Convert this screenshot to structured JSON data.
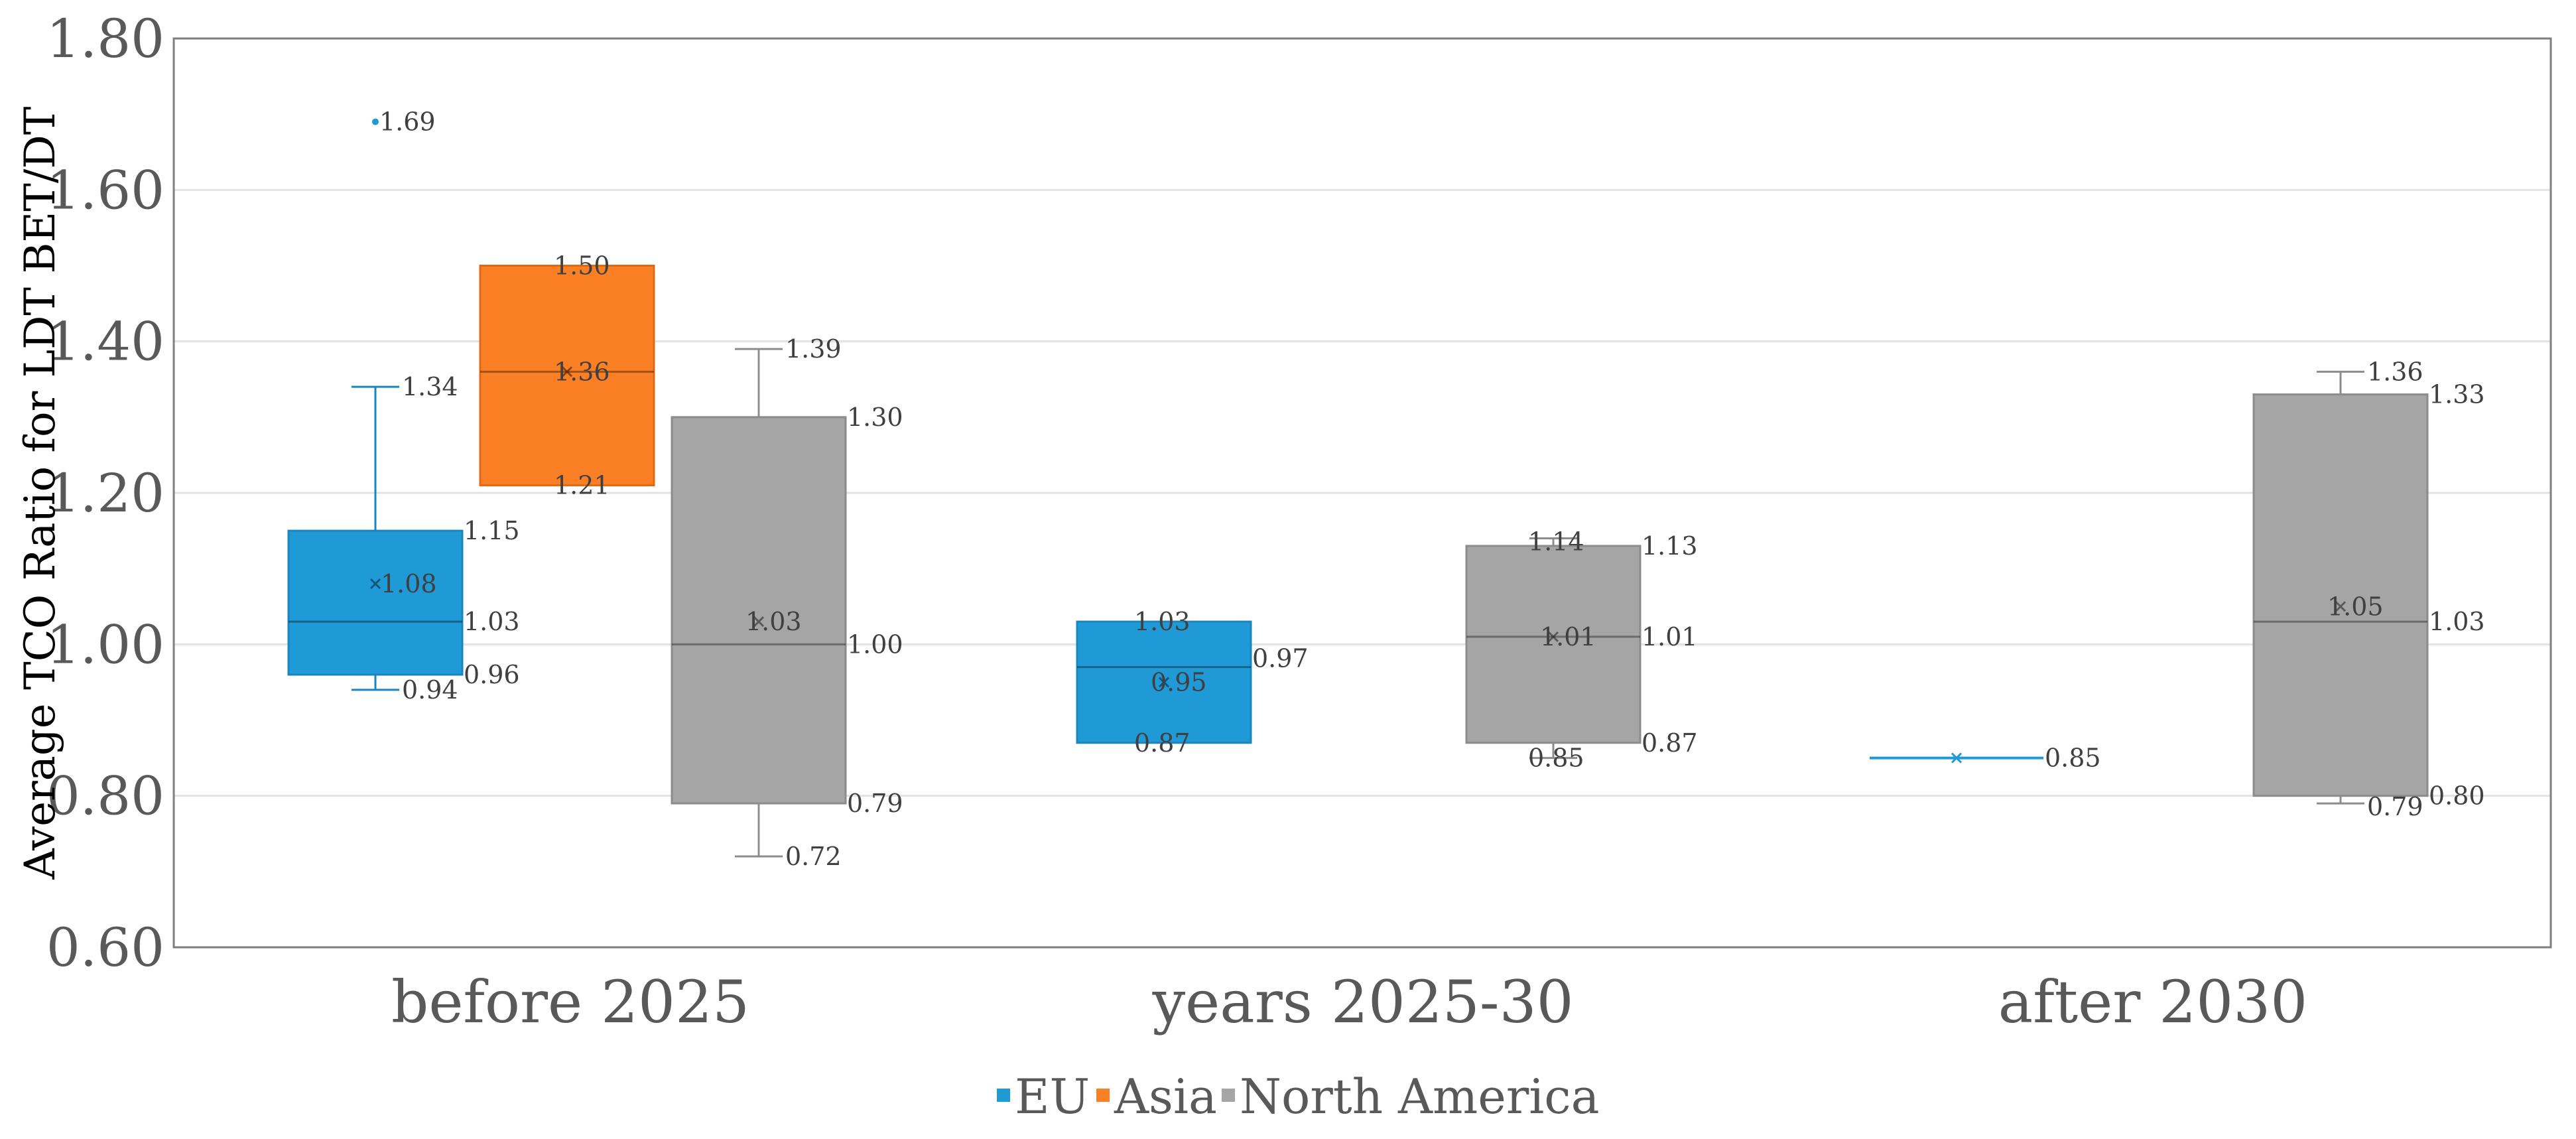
{
  "chart_data": {
    "type": "box",
    "ylabel": "Average TCO Ratio for LDT BET/DT",
    "ylim": [
      0.6,
      1.8
    ],
    "yticks": [
      "0.60",
      "0.80",
      "1.00",
      "1.20",
      "1.40",
      "1.60",
      "1.80"
    ],
    "categories": [
      "before 2025",
      "years 2025-30",
      "after 2030"
    ],
    "grid": true,
    "legend_position": "bottom",
    "series": [
      {
        "name": "EU",
        "color": "#1f9ad6",
        "boxes": [
          {
            "category": "before 2025",
            "min": 0.94,
            "q1": 0.96,
            "median": 1.03,
            "q3": 1.15,
            "max": 1.34,
            "mean": 1.08,
            "outliers": [
              1.69
            ],
            "labels": [
              "1.69",
              "1.34",
              "1.15",
              "1.08",
              "1.03",
              "0.96",
              "0.94"
            ]
          },
          {
            "category": "years 2025-30",
            "min": 0.87,
            "q1": 0.87,
            "median": 0.97,
            "q3": 1.03,
            "max": 1.03,
            "mean": 0.95,
            "outliers": [],
            "labels": [
              "1.03",
              "0.97",
              "0.95",
              "0.87"
            ]
          },
          {
            "category": "after 2030",
            "min": 0.85,
            "q1": 0.85,
            "median": 0.85,
            "q3": 0.85,
            "max": 0.85,
            "mean": 0.85,
            "outliers": [],
            "labels": [
              "0.85"
            ]
          }
        ]
      },
      {
        "name": "Asia",
        "color": "#fb7f24",
        "boxes": [
          {
            "category": "before 2025",
            "min": 1.21,
            "q1": 1.21,
            "median": 1.36,
            "q3": 1.5,
            "max": 1.5,
            "mean": 1.36,
            "outliers": [],
            "labels": [
              "1.50",
              "1.36",
              "1.21"
            ]
          }
        ]
      },
      {
        "name": "North America",
        "color": "#a5a5a5",
        "boxes": [
          {
            "category": "before 2025",
            "min": 0.72,
            "q1": 0.79,
            "median": 1.0,
            "q3": 1.3,
            "max": 1.39,
            "mean": 1.03,
            "outliers": [],
            "labels": [
              "1.39",
              "1.30",
              "1.03",
              "1.00",
              "0.79",
              "0.72"
            ]
          },
          {
            "category": "years 2025-30",
            "min": 0.85,
            "q1": 0.87,
            "median": 1.01,
            "q3": 1.13,
            "max": 1.14,
            "mean": 1.01,
            "outliers": [],
            "labels": [
              "1.14",
              "1.13",
              "1.01",
              "1.01",
              "0.87",
              "0.85"
            ]
          },
          {
            "category": "after 2030",
            "min": 0.79,
            "q1": 0.8,
            "median": 1.03,
            "q3": 1.33,
            "max": 1.36,
            "mean": 1.05,
            "outliers": [],
            "labels": [
              "1.36",
              "1.33",
              "1.05",
              "1.03",
              "0.80",
              "0.79"
            ]
          }
        ]
      }
    ]
  }
}
